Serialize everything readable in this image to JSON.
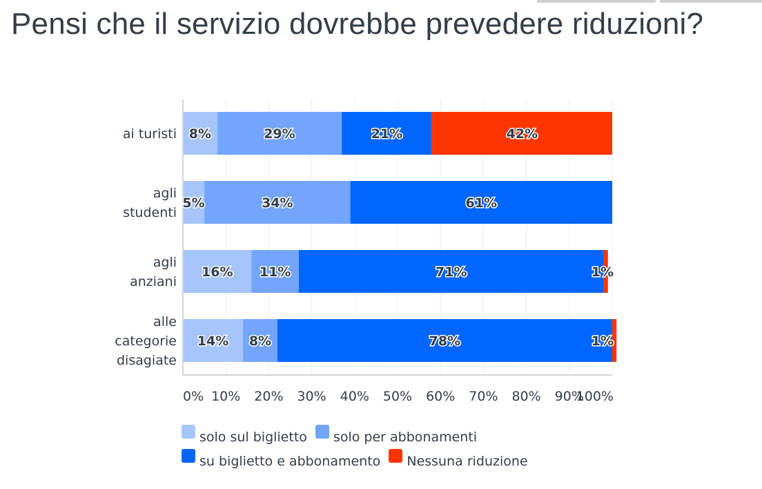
{
  "title": "Pensi che il servizio dovrebbe prevedere riduzioni?",
  "legend": [
    {
      "label": "solo sul biglietto",
      "color": "#a6c5fb"
    },
    {
      "label": "solo per abbonamenti",
      "color": "#72a5fb"
    },
    {
      "label": "su biglietto e abbonamento",
      "color": "#0066ff"
    },
    {
      "label": "Nessuna riduzione",
      "color": "#ff3500"
    }
  ],
  "chart_data": {
    "type": "bar",
    "orientation": "horizontal",
    "stacked": true,
    "title": "Pensi che il servizio dovrebbe prevedere riduzioni?",
    "xlabel": "",
    "ylabel": "",
    "xlim": [
      0,
      100
    ],
    "x_ticks": [
      "0%",
      "10%",
      "20%",
      "30%",
      "40%",
      "50%",
      "60%",
      "70%",
      "80%",
      "90%",
      "100%"
    ],
    "grid": true,
    "legend_position": "bottom",
    "categories": [
      [
        "ai turisti"
      ],
      [
        "agli",
        "studenti"
      ],
      [
        "agli",
        "anziani"
      ],
      [
        "alle",
        "categorie",
        "disagiate"
      ]
    ],
    "series": [
      {
        "name": "solo sul biglietto",
        "color": "#a6c5fb",
        "values": [
          8,
          5,
          16,
          14
        ]
      },
      {
        "name": "solo per abbonamenti",
        "color": "#72a5fb",
        "values": [
          29,
          34,
          11,
          8
        ]
      },
      {
        "name": "su biglietto e abbonamento",
        "color": "#0066ff",
        "values": [
          21,
          61,
          71,
          78
        ]
      },
      {
        "name": "Nessuna riduzione",
        "color": "#ff3500",
        "values": [
          42,
          0,
          1,
          1
        ]
      }
    ],
    "value_suffix": "%"
  }
}
